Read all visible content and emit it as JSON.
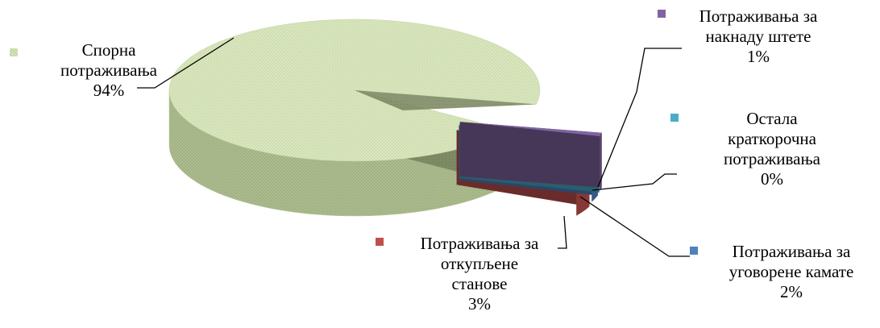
{
  "chart_data": {
    "type": "pie",
    "three_d": true,
    "slices": [
      {
        "name": "Спорна потраживања",
        "value": 94,
        "label_lines": [
          "Спорна",
          "потраживања",
          "94%"
        ],
        "color": "#d7e4bd"
      },
      {
        "name": "Потраживања за накнаду штете",
        "value": 1,
        "label_lines": [
          "Потраживања за",
          "накнаду штете",
          "1%"
        ],
        "color": "#8064a2"
      },
      {
        "name": "Остала краткорочна потраживања",
        "value": 0,
        "label_lines": [
          "Остала",
          "краткорочна",
          "потраживања",
          "0%"
        ],
        "color": "#4bacc6"
      },
      {
        "name": "Потраживања за уговорене камате",
        "value": 2,
        "label_lines": [
          "Потраживања за",
          "уговорене камате",
          "2%"
        ],
        "color": "#4f81bd"
      },
      {
        "name": "Потраживања за откупљене станове",
        "value": 3,
        "label_lines": [
          "Потраживања за",
          "откупљене",
          "станове",
          "3%"
        ],
        "color": "#c0504d"
      }
    ]
  }
}
